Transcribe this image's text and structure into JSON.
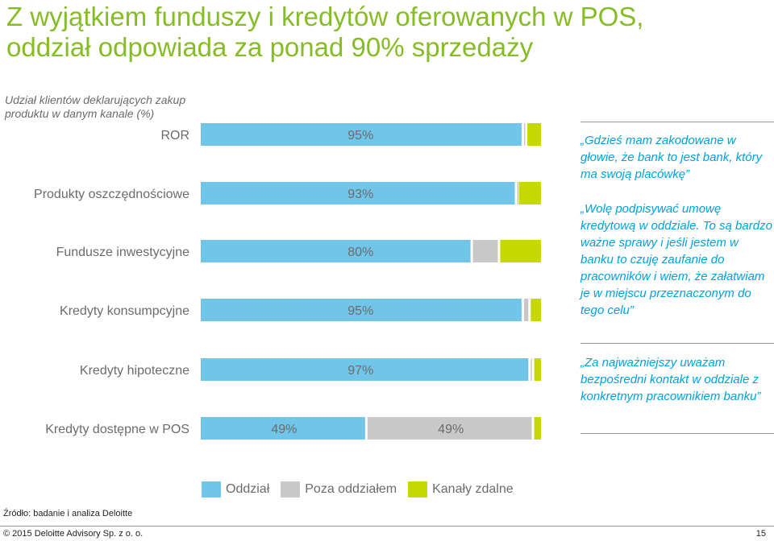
{
  "title": {
    "line1": "Z wyjątkiem funduszy i kredytów oferowanych w POS,",
    "line2": "oddział odpowiada za ponad 90% sprzedaży"
  },
  "subtitle": {
    "line1": "Udział klientów deklarujących zakup",
    "line2": "produktu w danym kanale (%)"
  },
  "colors": {
    "oddzial": "#71c5e8",
    "poza": "#c8c8c8",
    "zdalne": "#c5d900",
    "title": "#86bc25",
    "quote": "#00a1de"
  },
  "chart_data": {
    "type": "bar",
    "orientation": "horizontal",
    "stacked": true,
    "categories": [
      "ROR",
      "Produkty oszczędnościowe",
      "Fundusze inwestycyjne",
      "Kredyty konsumpcyjne",
      "Kredyty hipoteczne",
      "Kredyty dostępne w POS"
    ],
    "series": [
      {
        "name": "Oddział",
        "values": [
          95,
          93,
          80,
          95,
          97,
          49
        ]
      },
      {
        "name": "Poza oddziałem",
        "values": [
          1,
          0.5,
          8,
          2,
          1,
          49
        ]
      },
      {
        "name": "Kanały zdalne",
        "values": [
          4,
          6.5,
          12,
          3,
          2,
          2
        ]
      }
    ],
    "data_labels": [
      [
        "95%"
      ],
      [
        "93%"
      ],
      [
        "80%"
      ],
      [
        "95%"
      ],
      [
        "97%"
      ],
      [
        "49%",
        "49%"
      ]
    ],
    "xlim": [
      0,
      100
    ],
    "legend_position": "bottom",
    "grid": false
  },
  "quotes": [
    "„Gdzieś mam zakodowane w głowie, że bank to jest bank, który ma swoją placówkę”",
    "„Wolę podpisywać umowę kredytową w oddziale. To są bardzo ważne sprawy i jeśli jestem w banku to czuję zaufanie do pracowników i wiem, że załatwiam je w miejscu przeznaczonym do tego celu”",
    "„Za najważniejszy uważam bezpośredni kontakt w oddziale z konkretnym pracownikiem banku”"
  ],
  "legend": {
    "oddzial": "Oddział",
    "poza": "Poza oddziałem",
    "zdalne": "Kanały zdalne"
  },
  "source": "Źródło: badanie i analiza Deloitte",
  "copyright": "© 2015 Deloitte Advisory Sp. z o. o.",
  "page_number": "15"
}
